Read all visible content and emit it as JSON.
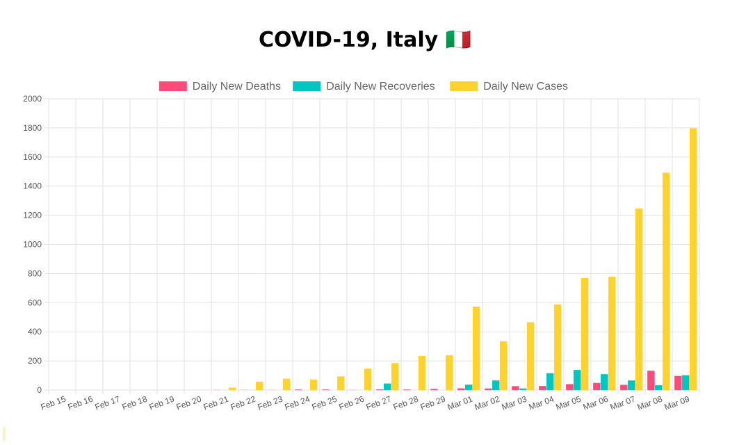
{
  "chart_data": {
    "type": "bar",
    "title": "COVID-19, Italy",
    "title_flag": "🇮🇹",
    "categories": [
      "Feb 15",
      "Feb 16",
      "Feb 17",
      "Feb 18",
      "Feb 19",
      "Feb 20",
      "Feb 21",
      "Feb 22",
      "Feb 23",
      "Feb 24",
      "Feb 25",
      "Feb 26",
      "Feb 27",
      "Feb 28",
      "Feb 29",
      "Mar 01",
      "Mar 02",
      "Mar 03",
      "Mar 04",
      "Mar 05",
      "Mar 06",
      "Mar 07",
      "Mar 08",
      "Mar 09"
    ],
    "series": [
      {
        "name": "Daily New Deaths",
        "color": "#ff4a7a",
        "values": [
          0,
          0,
          0,
          0,
          0,
          0,
          1,
          1,
          1,
          4,
          4,
          1,
          5,
          4,
          8,
          12,
          11,
          27,
          28,
          41,
          49,
          36,
          133,
          97
        ]
      },
      {
        "name": "Daily New Recoveries",
        "color": "#00c5c1",
        "values": [
          0,
          0,
          0,
          0,
          0,
          0,
          0,
          0,
          0,
          0,
          0,
          0,
          45,
          0,
          0,
          37,
          66,
          11,
          116,
          138,
          109,
          66,
          33,
          102
        ]
      },
      {
        "name": "Daily New Cases",
        "color": "#ffd22e",
        "values": [
          0,
          0,
          0,
          0,
          0,
          0,
          17,
          58,
          78,
          72,
          94,
          147,
          185,
          234,
          239,
          573,
          335,
          466,
          587,
          769,
          778,
          1247,
          1492,
          1797
        ]
      }
    ],
    "ylim": [
      0,
      2000
    ],
    "yticks": [
      0,
      200,
      400,
      600,
      800,
      1000,
      1200,
      1400,
      1600,
      1800,
      2000
    ],
    "legend_position": "top-center",
    "grid": true
  }
}
